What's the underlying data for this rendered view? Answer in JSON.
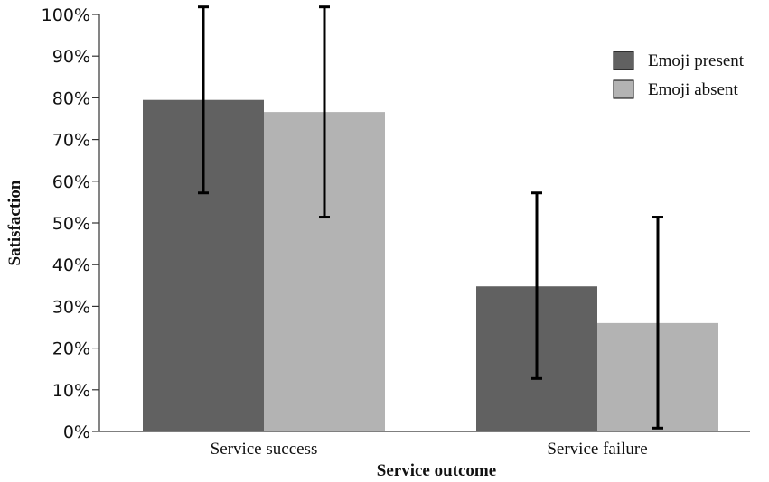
{
  "chart_data": {
    "type": "bar",
    "title": "",
    "xlabel": "Service outcome",
    "ylabel": "Satisfaction",
    "categories": [
      "Service success",
      "Service failure"
    ],
    "ylim": [
      0,
      100
    ],
    "yticks": [
      "0%",
      "10%",
      "20%",
      "30%",
      "40%",
      "50%",
      "60%",
      "70%",
      "80%",
      "90%",
      "100%"
    ],
    "grid": false,
    "legend": "top-right",
    "series": [
      {
        "name": "Emoji present",
        "color": "#616161",
        "values": [
          79.5,
          34.8
        ],
        "error_low": [
          57.2,
          12.7
        ],
        "error_high": [
          101.8,
          57.2
        ]
      },
      {
        "name": "Emoji absent",
        "color": "#b3b3b3",
        "values": [
          76.6,
          26.0
        ],
        "error_low": [
          51.4,
          0.8
        ],
        "error_high": [
          101.8,
          51.4
        ]
      }
    ]
  }
}
